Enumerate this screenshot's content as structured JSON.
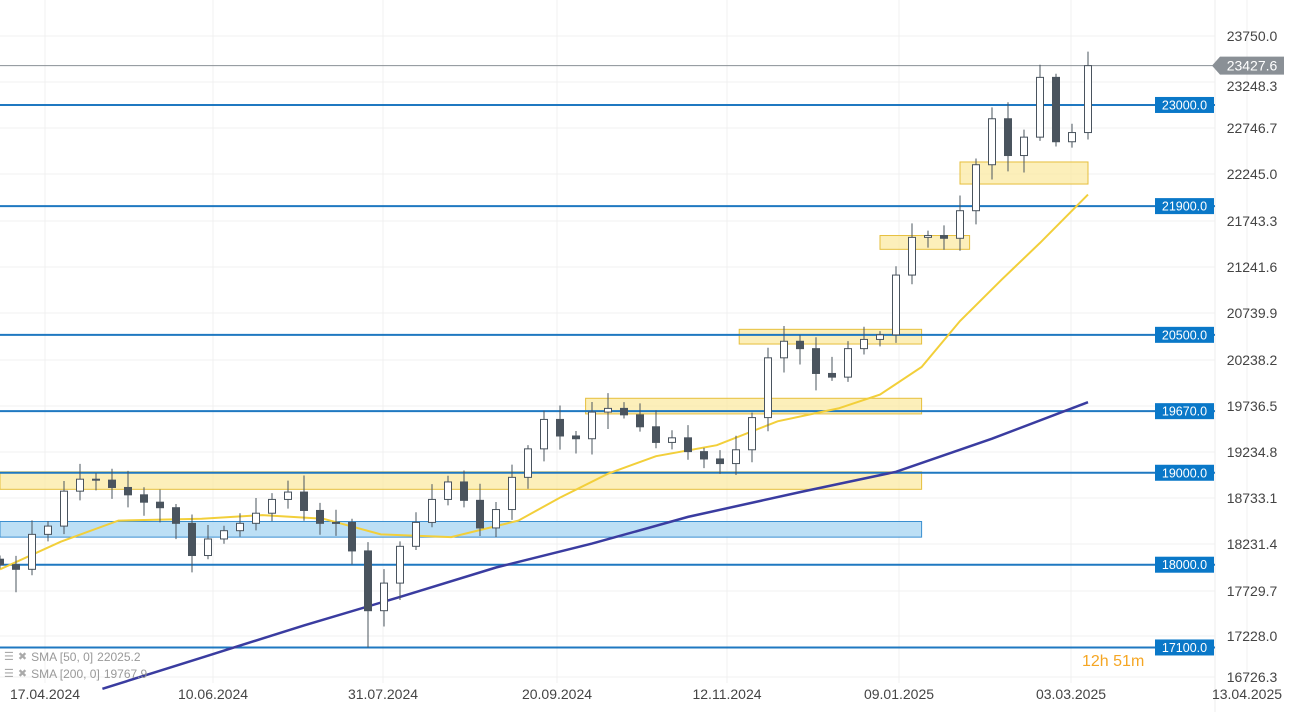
{
  "chart_data": {
    "type": "candlestick",
    "instrument_last_price": "23427.6",
    "y_ticks": [
      "23750.0",
      "23248.3",
      "22746.7",
      "22245.0",
      "21743.3",
      "21241.6",
      "20739.9",
      "20238.2",
      "19736.5",
      "19234.8",
      "18733.1",
      "18231.4",
      "17729.7",
      "17228.0",
      "16726.3"
    ],
    "ylim": [
      16726.3,
      23750.0
    ],
    "x_ticks": [
      "17.04.2024",
      "10.06.2024",
      "31.07.2024",
      "20.09.2024",
      "12.11.2024",
      "09.01.2025",
      "03.03.2025",
      "13.04.2025"
    ],
    "grid": true,
    "dates": [
      "03.04.2024",
      "08.04.2024",
      "13.04.2024",
      "18.04.2024",
      "23.04.2024",
      "28.04.2024",
      "03.05.2024",
      "08.05.2024",
      "13.05.2024",
      "18.05.2024",
      "23.05.2024",
      "28.05.2024",
      "02.06.2024",
      "07.06.2024",
      "12.06.2024",
      "17.06.2024",
      "22.06.2024",
      "27.06.2024",
      "02.07.2024",
      "07.07.2024",
      "12.07.2024",
      "17.07.2024",
      "22.07.2024",
      "27.07.2024",
      "01.08.2024",
      "06.08.2024",
      "11.08.2024",
      "16.08.2024",
      "21.08.2024",
      "26.08.2024",
      "31.08.2024",
      "05.09.2024",
      "10.09.2024",
      "15.09.2024",
      "20.09.2024",
      "25.09.2024",
      "30.09.2024",
      "05.10.2024",
      "10.10.2024",
      "15.10.2024",
      "20.10.2024",
      "25.10.2024",
      "30.10.2024",
      "04.11.2024",
      "09.11.2024",
      "14.11.2024",
      "19.11.2024",
      "24.11.2024",
      "29.11.2024",
      "04.12.2024",
      "09.12.2024",
      "14.12.2024",
      "19.12.2024",
      "24.12.2024",
      "29.12.2024",
      "03.01.2025",
      "08.01.2025",
      "13.01.2025",
      "18.01.2025",
      "23.01.2025",
      "28.01.2025",
      "02.02.2025",
      "07.02.2025",
      "12.02.2025",
      "17.02.2025",
      "22.02.2025",
      "27.02.2025",
      "04.03.2025",
      "09.03.2025"
    ],
    "close": [
      18000,
      17950,
      18330,
      18420,
      18800,
      18930,
      18920,
      18840,
      18760,
      18680,
      18620,
      18450,
      18100,
      18280,
      18370,
      18450,
      18560,
      18710,
      18790,
      18590,
      18450,
      18460,
      18150,
      17500,
      17800,
      18200,
      18460,
      18710,
      18900,
      18700,
      18400,
      18600,
      18950,
      19260,
      19580,
      19400,
      19370,
      19660,
      19700,
      19630,
      19500,
      19330,
      19380,
      19230,
      19150,
      19100,
      19250,
      19600,
      20250,
      20430,
      20350,
      20080,
      20040,
      20350,
      20450,
      20500,
      21150,
      21560,
      21580,
      21550,
      21850,
      22350,
      22850,
      22450,
      22650,
      23300,
      22600,
      22700,
      23427.6
    ],
    "series": [
      {
        "name": "SMA [50, 0]",
        "value_label": "22025.2",
        "color": "#f2cf3a",
        "points": [
          [
            "03.04.2024",
            17950
          ],
          [
            "22.04.2024",
            18250
          ],
          [
            "10.05.2024",
            18480
          ],
          [
            "05.06.2024",
            18500
          ],
          [
            "24.06.2024",
            18540
          ],
          [
            "13.07.2024",
            18500
          ],
          [
            "31.07.2024",
            18330
          ],
          [
            "22.08.2024",
            18300
          ],
          [
            "12.09.2024",
            18480
          ],
          [
            "25.09.2024",
            18730
          ],
          [
            "10.10.2024",
            18990
          ],
          [
            "25.10.2024",
            19180
          ],
          [
            "13.11.2024",
            19300
          ],
          [
            "02.12.2024",
            19560
          ],
          [
            "21.12.2024",
            19700
          ],
          [
            "03.01.2025",
            19850
          ],
          [
            "16.01.2025",
            20150
          ],
          [
            "28.01.2025",
            20650
          ],
          [
            "10.02.2025",
            21100
          ],
          [
            "22.02.2025",
            21500
          ],
          [
            "09.03.2025",
            22025.2
          ]
        ]
      },
      {
        "name": "SMA [200, 0]",
        "value_label": "19767.9",
        "color": "#3a3ca0",
        "points": [
          [
            "05.05.2024",
            16650
          ],
          [
            "06.06.2024",
            17000
          ],
          [
            "07.07.2024",
            17340
          ],
          [
            "06.08.2024",
            17650
          ],
          [
            "05.09.2024",
            17970
          ],
          [
            "05.10.2024",
            18230
          ],
          [
            "04.11.2024",
            18520
          ],
          [
            "09.12.2024",
            18790
          ],
          [
            "08.01.2025",
            19010
          ],
          [
            "07.02.2025",
            19370
          ],
          [
            "09.03.2025",
            19767.9
          ]
        ]
      }
    ],
    "levels": [
      {
        "value": 23000,
        "label": "23000.0"
      },
      {
        "value": 21900,
        "label": "21900.0"
      },
      {
        "value": 20500,
        "label": "20500.0"
      },
      {
        "value": 19670,
        "label": "19670.0"
      },
      {
        "value": 19000,
        "label": "19000.0"
      },
      {
        "value": 18000,
        "label": "18000.0"
      },
      {
        "value": 17100,
        "label": "17100.0"
      }
    ],
    "zones": [
      {
        "from": 22140,
        "to": 22380,
        "start": "28.01.2025",
        "end": "09.03.2025",
        "color": "yellow"
      },
      {
        "from": 21430,
        "to": 21580,
        "start": "03.01.2025",
        "end": "31.01.2025",
        "color": "yellow"
      },
      {
        "from": 20400,
        "to": 20560,
        "start": "20.11.2024",
        "end": "16.01.2025",
        "color": "yellow"
      },
      {
        "from": 19640,
        "to": 19810,
        "start": "03.10.2024",
        "end": "16.01.2025",
        "color": "yellow"
      },
      {
        "from": 18820,
        "to": 19010,
        "start": "03.04.2024",
        "end": "16.01.2025",
        "color": "yellow"
      },
      {
        "from": 18300,
        "to": 18470,
        "start": "03.04.2024",
        "end": "16.01.2025",
        "color": "blue"
      }
    ],
    "colors": {
      "level": "#1f78c1",
      "level_tag": "#0a78c8",
      "last_price": "#8a9096",
      "candle": "#4a545e",
      "zone_yellow": "#fbeaa3",
      "zone_blue": "#b5dcf4"
    }
  },
  "timer_text": "12h 51m"
}
